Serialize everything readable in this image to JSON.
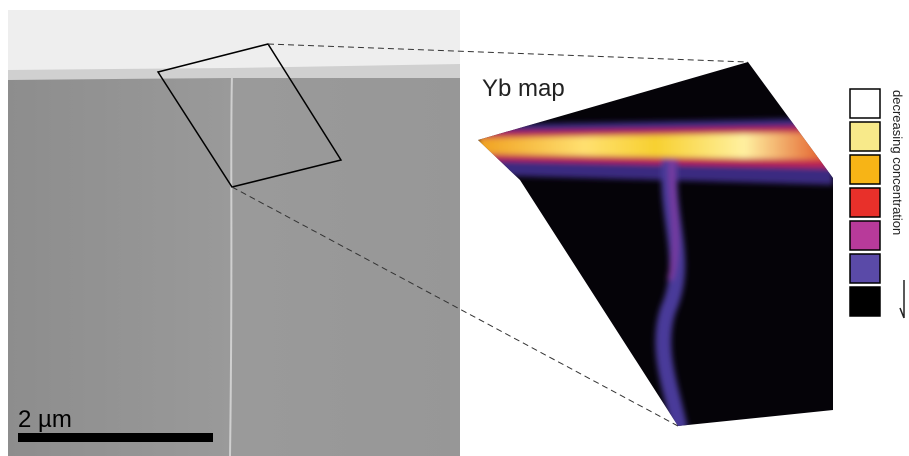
{
  "image": {
    "map_label": "Yb map",
    "scale_bar": "2 µm",
    "legend_label": "decreasing concentration"
  }
}
